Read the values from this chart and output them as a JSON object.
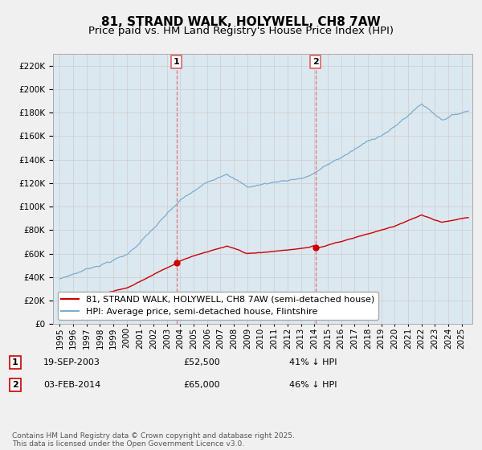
{
  "title": "81, STRAND WALK, HOLYWELL, CH8 7AW",
  "subtitle": "Price paid vs. HM Land Registry's House Price Index (HPI)",
  "ylim": [
    0,
    230000
  ],
  "yticks": [
    0,
    20000,
    40000,
    60000,
    80000,
    100000,
    120000,
    140000,
    160000,
    180000,
    200000,
    220000
  ],
  "xlim_start": 1994.5,
  "xlim_end": 2025.8,
  "sale1_date": 2003.72,
  "sale1_price": 52500,
  "sale2_date": 2014.09,
  "sale2_price": 65000,
  "red_line_color": "#cc0000",
  "blue_line_color": "#7aadcf",
  "vline_color": "#dd6666",
  "grid_color": "#cccccc",
  "plot_bg_color": "#dce8f0",
  "background_color": "#f0f0f0",
  "legend_label_red": "81, STRAND WALK, HOLYWELL, CH8 7AW (semi-detached house)",
  "legend_label_blue": "HPI: Average price, semi-detached house, Flintshire",
  "table_date1": "19-SEP-2003",
  "table_price1": "£52,500",
  "table_pct1": "41% ↓ HPI",
  "table_date2": "03-FEB-2014",
  "table_price2": "£65,000",
  "table_pct2": "46% ↓ HPI",
  "footnote": "Contains HM Land Registry data © Crown copyright and database right 2025.\nThis data is licensed under the Open Government Licence v3.0.",
  "title_fontsize": 11,
  "subtitle_fontsize": 9.5,
  "axis_fontsize": 7.5,
  "legend_fontsize": 8,
  "footnote_fontsize": 6.5
}
